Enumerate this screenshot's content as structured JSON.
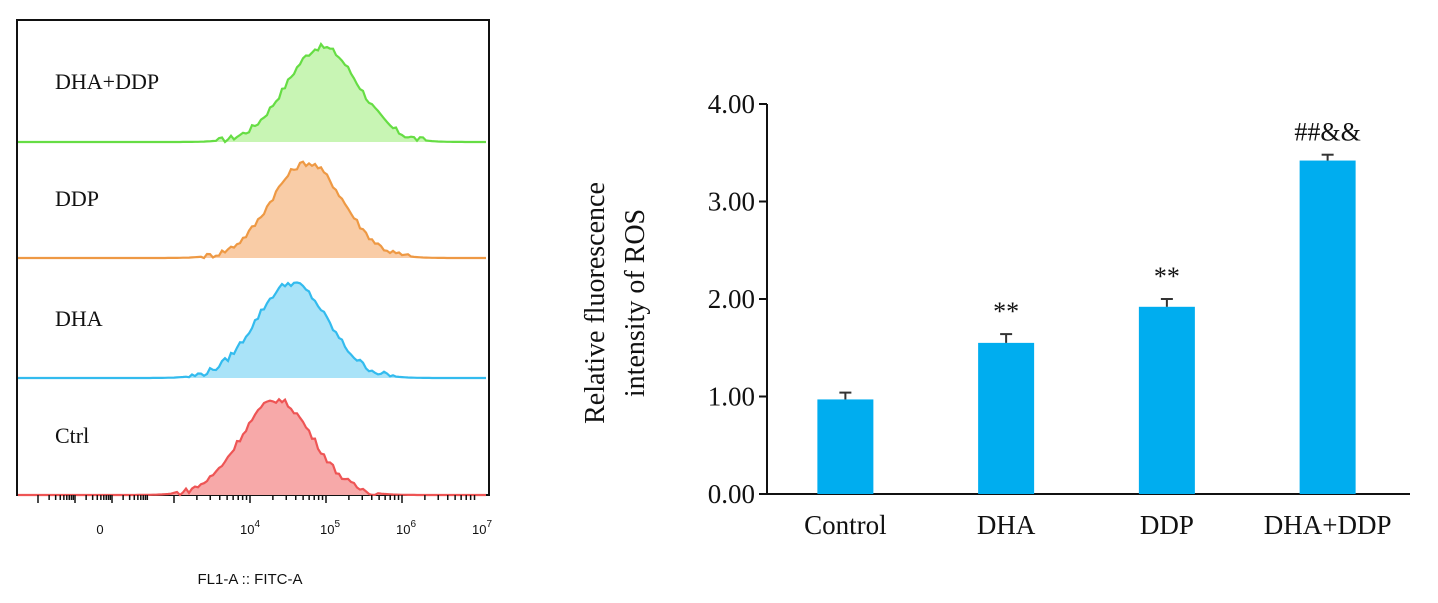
{
  "flow": {
    "type": "histogram",
    "xlabel": "FL1-A :: FITC-A",
    "x_ticks": [
      {
        "base": "0",
        "exp": ""
      },
      {
        "base": "10",
        "exp": "4"
      },
      {
        "base": "10",
        "exp": "5"
      },
      {
        "base": "10",
        "exp": "6"
      },
      {
        "base": "10",
        "exp": "7"
      }
    ],
    "tracks": [
      {
        "label": "DHA+DDP",
        "color": "#66dd44",
        "fill": "#c8f5b4",
        "peak_log": 4.95
      },
      {
        "label": "DDP",
        "color": "#ee9944",
        "fill": "#f9cca6",
        "peak_log": 4.75
      },
      {
        "label": "DHA",
        "color": "#33bbee",
        "fill": "#a9e3f8",
        "peak_log": 4.55
      },
      {
        "label": "Ctrl",
        "color": "#ee5555",
        "fill": "#f7a9a9",
        "peak_log": 4.35
      }
    ]
  },
  "chart_data": {
    "type": "bar",
    "categories": [
      "Control",
      "DHA",
      "DDP",
      "DHA+DDP"
    ],
    "values": [
      0.97,
      1.55,
      1.92,
      3.42
    ],
    "errors": [
      0.07,
      0.09,
      0.08,
      0.06
    ],
    "annotations": [
      "",
      "**",
      "**",
      "##&&"
    ],
    "ylabel": [
      "Relative fluorescence",
      "intensity of ROS"
    ],
    "y_ticks": [
      "0.00",
      "1.00",
      "2.00",
      "3.00",
      "4.00"
    ],
    "ylim": [
      0,
      4
    ],
    "bar_color": "#00adef",
    "grid": false
  }
}
